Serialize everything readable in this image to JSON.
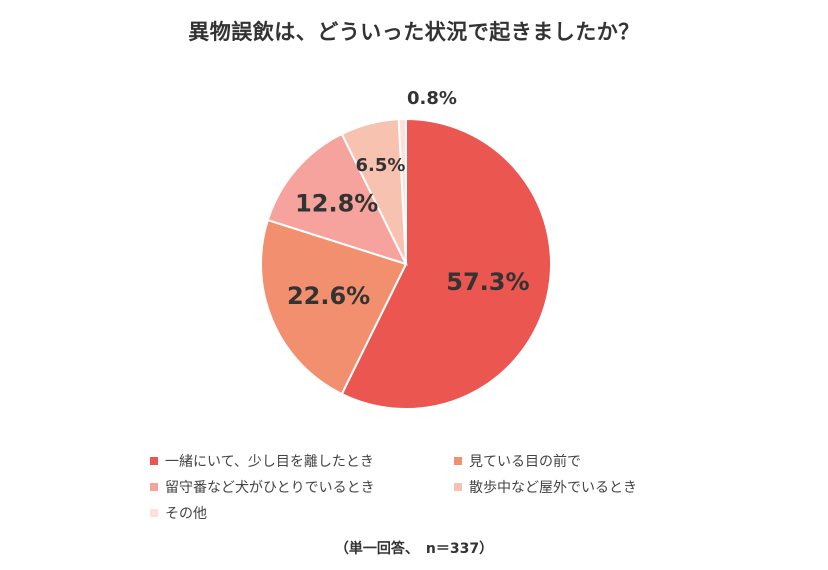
{
  "chart_data": {
    "type": "pie",
    "title": "異物誤飲は、どういった状況で起きましたか？",
    "note": "（単一回答、　n＝337）",
    "series": [
      {
        "name": "一緒にいて、少し目を離したとき",
        "value": 57.3,
        "label": "57.3%",
        "color": "#eb5650"
      },
      {
        "name": "見ている目の前で",
        "value": 22.6,
        "label": "22.6%",
        "color": "#f28f6f"
      },
      {
        "name": "留守番など犬がひとりでいるとき",
        "value": 12.8,
        "label": "12.8%",
        "color": "#f7a39d"
      },
      {
        "name": "散歩中など屋外でいるとき",
        "value": 6.5,
        "label": "6.5%",
        "color": "#f8c2b1"
      },
      {
        "name": "その他",
        "value": 0.8,
        "label": "0.8%",
        "color": "#fce0d9"
      }
    ],
    "legend_position": "bottom"
  }
}
